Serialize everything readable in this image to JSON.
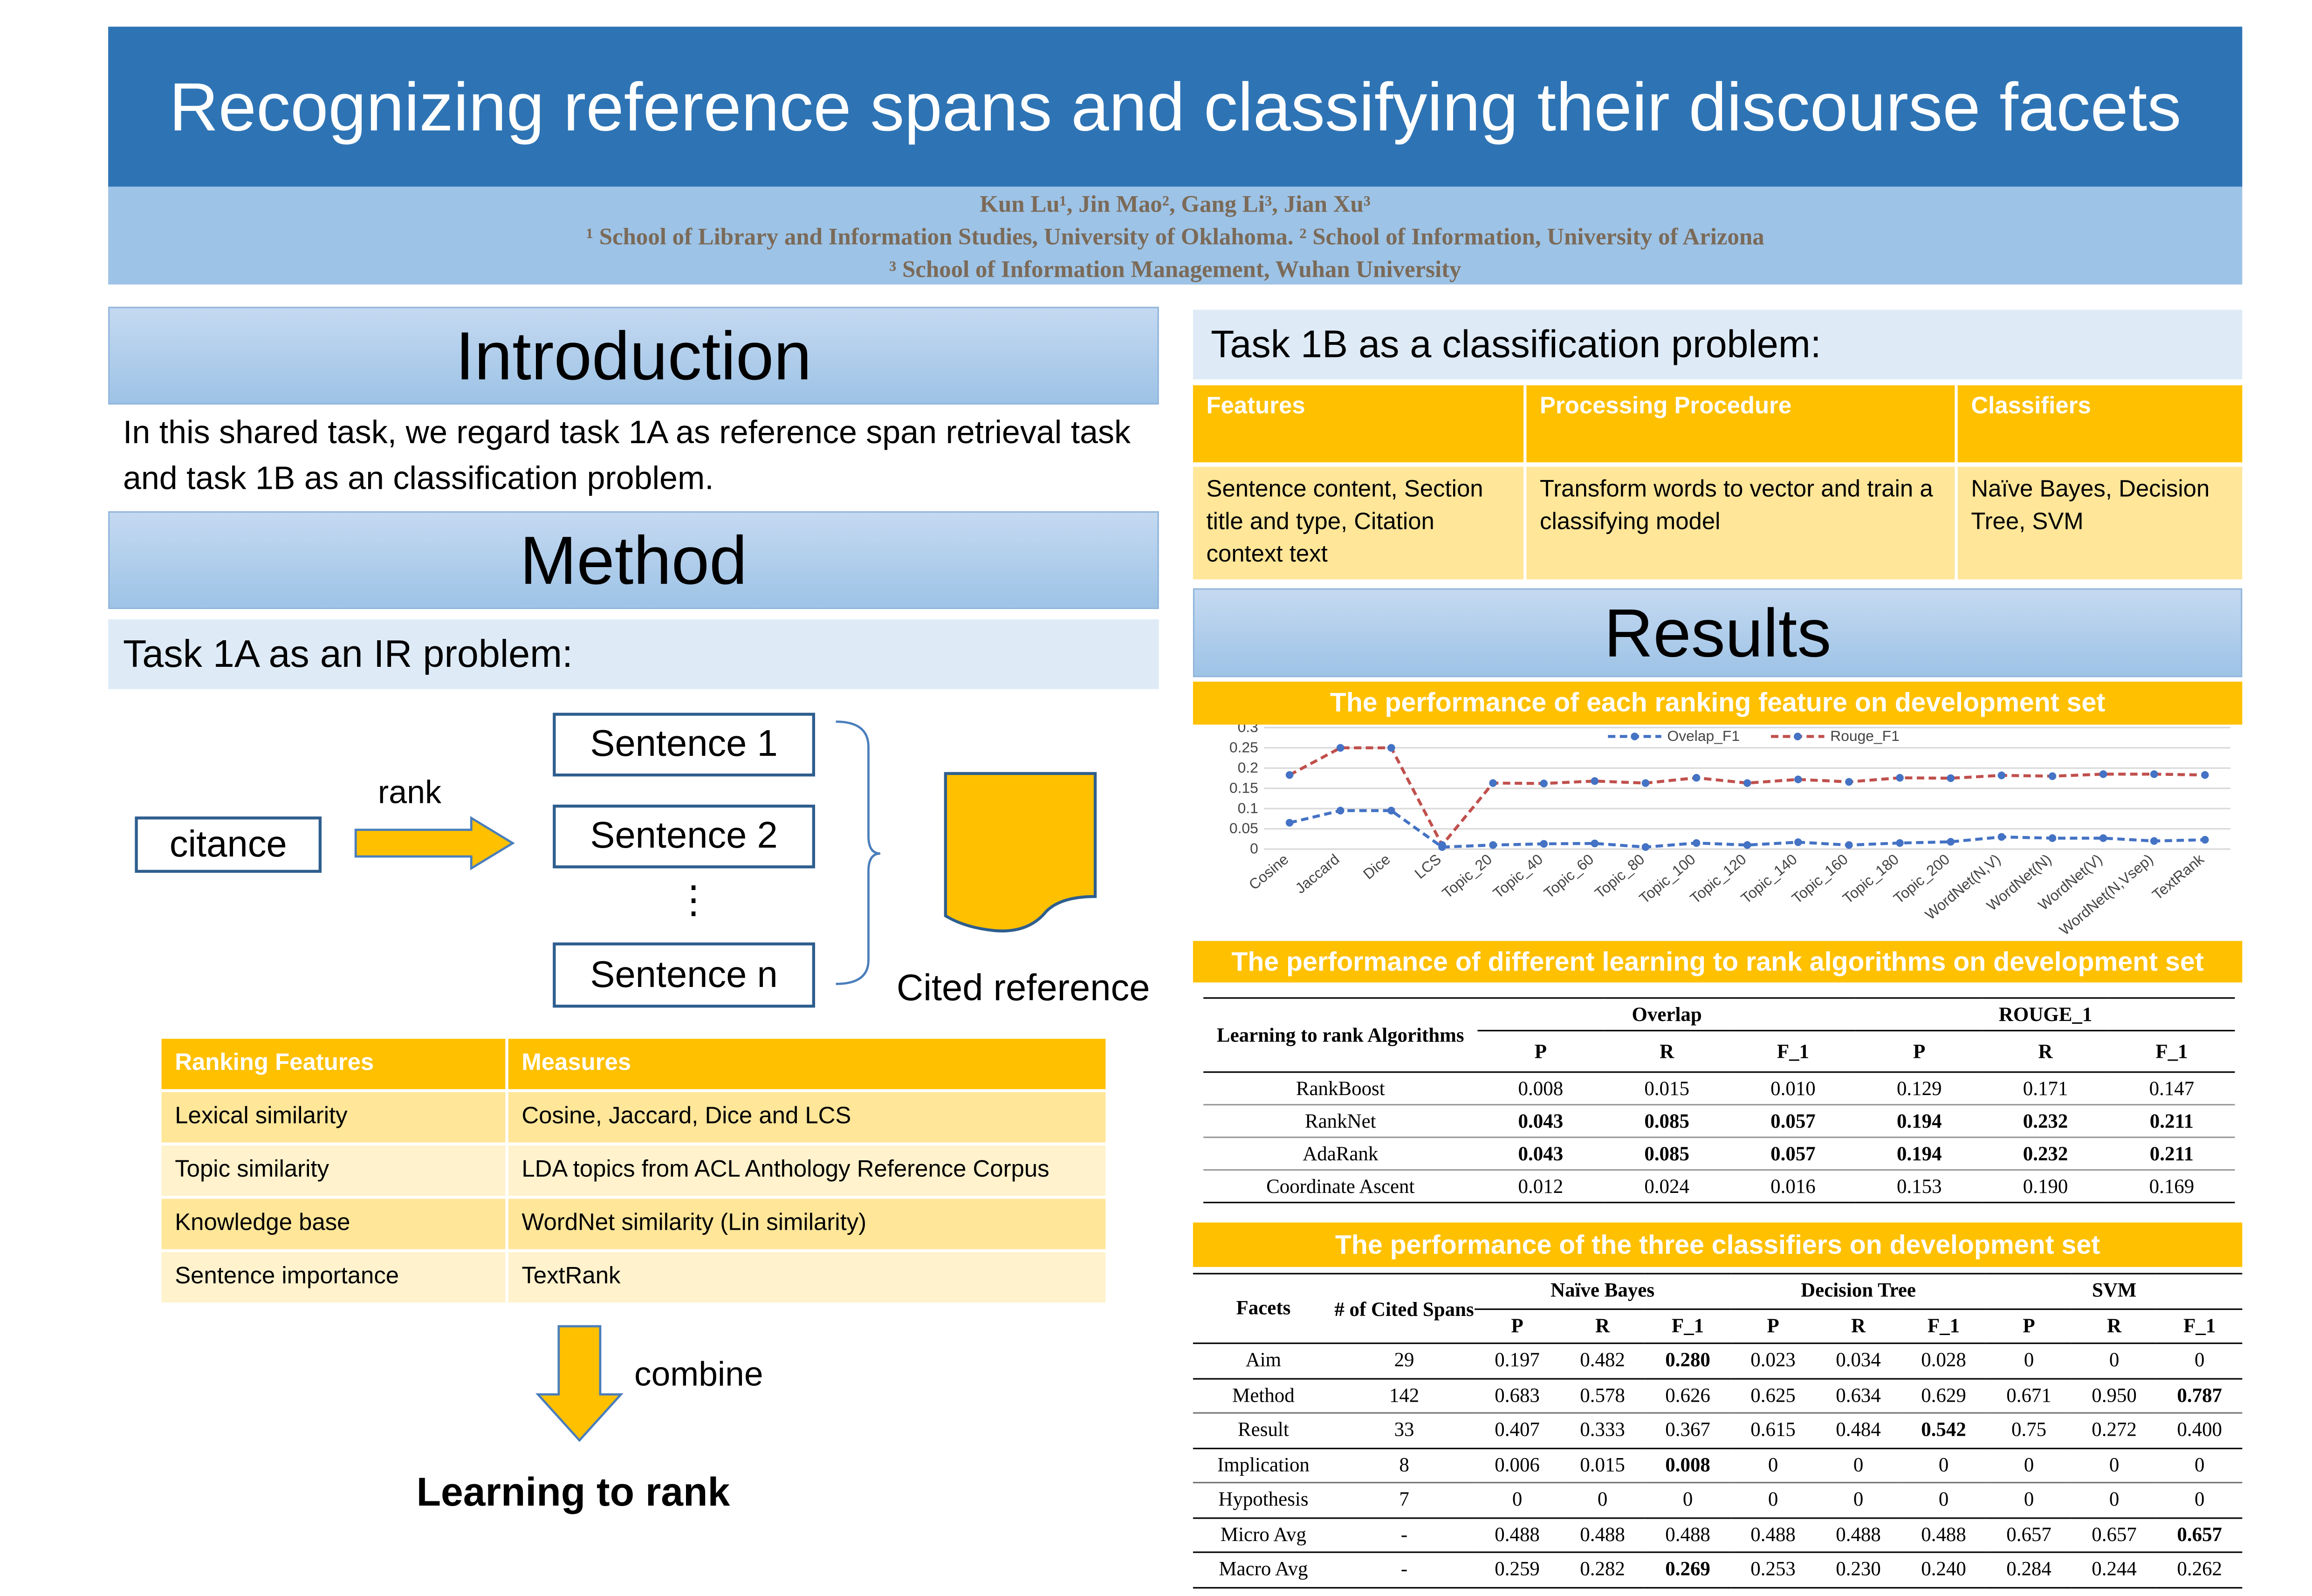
{
  "title": "Recognizing reference spans and classifying their discourse facets",
  "authors": {
    "line1": "Kun Lu¹, Jin Mao², Gang Li³, Jian Xu³",
    "line2": "¹ School of Library and Information Studies, University of Oklahoma. ² School of Information, University of Arizona",
    "line3": "³ School of Information Management, Wuhan University"
  },
  "intro": {
    "heading": "Introduction",
    "text": "In this shared task, we regard task 1A as reference span retrieval task and task 1B as an classification problem."
  },
  "method": {
    "heading": "Method",
    "task1a": "Task 1A as an IR problem:",
    "diagram": {
      "citance": "citance",
      "rank": "rank",
      "s1": "Sentence 1",
      "s2": "Sentence 2",
      "dots": "⋮",
      "sn": "Sentence n",
      "cited": "Cited reference",
      "combine": "combine",
      "ltr": "Learning to rank"
    },
    "ranking_table": {
      "headers": [
        "Ranking Features",
        "Measures"
      ],
      "rows": [
        [
          "Lexical similarity",
          "Cosine, Jaccard, Dice and LCS"
        ],
        [
          "Topic similarity",
          "LDA topics from ACL Anthology Reference Corpus"
        ],
        [
          "Knowledge base",
          "WordNet similarity (Lin similarity)"
        ],
        [
          "Sentence importance",
          "TextRank"
        ]
      ]
    }
  },
  "task1b": {
    "heading": "Task 1B as a classification problem:",
    "headers": [
      "Features",
      "Processing Procedure",
      "Classifiers"
    ],
    "row": [
      "Sentence content, Section title and type, Citation context text",
      "Transform words to vector and train a classifying model",
      "Naïve Bayes, Decision Tree, SVM"
    ]
  },
  "results": {
    "heading": "Results",
    "chart_title": "The performance of each ranking feature on development set",
    "table2_title": "The performance of different learning to rank algorithms on development set",
    "table3_title": "The performance of the three classifiers on development set"
  },
  "chart_data": {
    "type": "line",
    "title": "",
    "xlabel": "",
    "ylabel": "",
    "ylim": [
      0,
      0.3
    ],
    "yticks": [
      "0",
      "0.05",
      "0.1",
      "0.15",
      "0.2",
      "0.25",
      "0.3"
    ],
    "grid": true,
    "legend": "top",
    "categories": [
      "Cosine",
      "Jaccard",
      "Dice",
      "LCS",
      "Topic_20",
      "Topic_40",
      "Topic_60",
      "Topic_80",
      "Topic_100",
      "Topic_120",
      "Topic_140",
      "Topic_160",
      "Topic_180",
      "Topic_200",
      "WordNet(N,V)",
      "WordNet(N)",
      "WordNet(V)",
      "WordNet(N,Vsep)",
      "TextRank"
    ],
    "series": [
      {
        "name": "Ovelap_F1",
        "color": "#4472c4",
        "values": [
          0.065,
          0.095,
          0.095,
          0.005,
          0.01,
          0.013,
          0.014,
          0.005,
          0.015,
          0.01,
          0.017,
          0.01,
          0.015,
          0.018,
          0.03,
          0.027,
          0.027,
          0.02,
          0.023
        ]
      },
      {
        "name": "Rouge_F1",
        "color": "#c0504d",
        "values": [
          0.183,
          0.25,
          0.25,
          0.01,
          0.163,
          0.162,
          0.168,
          0.163,
          0.176,
          0.163,
          0.172,
          0.166,
          0.176,
          0.175,
          0.182,
          0.18,
          0.185,
          0.185,
          0.183
        ]
      }
    ]
  },
  "table2": {
    "head1": "Learning to rank Algorithms",
    "groups": [
      "Overlap",
      "ROUGE_1"
    ],
    "cols": [
      "P",
      "R",
      "F_1",
      "P",
      "R",
      "F_1"
    ],
    "rows": [
      {
        "name": "RankBoost",
        "v": [
          "0.008",
          "0.015",
          "0.010",
          "0.129",
          "0.171",
          "0.147"
        ],
        "bold": false
      },
      {
        "name": "RankNet",
        "v": [
          "0.043",
          "0.085",
          "0.057",
          "0.194",
          "0.232",
          "0.211"
        ],
        "bold": true
      },
      {
        "name": "AdaRank",
        "v": [
          "0.043",
          "0.085",
          "0.057",
          "0.194",
          "0.232",
          "0.211"
        ],
        "bold": true
      },
      {
        "name": "Coordinate Ascent",
        "v": [
          "0.012",
          "0.024",
          "0.016",
          "0.153",
          "0.190",
          "0.169"
        ],
        "bold": false
      }
    ]
  },
  "table3": {
    "head_facets": "Facets",
    "head_spans": "# of Cited Spans",
    "groups": [
      "Naïve Bayes",
      "Decision Tree",
      "SVM"
    ],
    "cols": [
      "P",
      "R",
      "F_1",
      "P",
      "R",
      "F_1",
      "P",
      "R",
      "F_1"
    ],
    "rows": [
      {
        "name": "Aim",
        "n": "29",
        "v": [
          "0.197",
          "0.482",
          "0.280",
          "0.023",
          "0.034",
          "0.028",
          "0",
          "0",
          "0"
        ],
        "bold": [
          2
        ]
      },
      {
        "name": "Method",
        "n": "142",
        "v": [
          "0.683",
          "0.578",
          "0.626",
          "0.625",
          "0.634",
          "0.629",
          "0.671",
          "0.950",
          "0.787"
        ],
        "bold": [
          8
        ]
      },
      {
        "name": "Result",
        "n": "33",
        "v": [
          "0.407",
          "0.333",
          "0.367",
          "0.615",
          "0.484",
          "0.542",
          "0.75",
          "0.272",
          "0.400"
        ],
        "bold": [
          5
        ]
      },
      {
        "name": "Implication",
        "n": "8",
        "v": [
          "0.006",
          "0.015",
          "0.008",
          "0",
          "0",
          "0",
          "0",
          "0",
          "0"
        ],
        "bold": [
          2
        ]
      },
      {
        "name": "Hypothesis",
        "n": "7",
        "v": [
          "0",
          "0",
          "0",
          "0",
          "0",
          "0",
          "0",
          "0",
          "0"
        ],
        "bold": []
      },
      {
        "name": "Micro Avg",
        "n": "-",
        "v": [
          "0.488",
          "0.488",
          "0.488",
          "0.488",
          "0.488",
          "0.488",
          "0.657",
          "0.657",
          "0.657"
        ],
        "bold": [
          8
        ]
      },
      {
        "name": "Macro Avg",
        "n": "-",
        "v": [
          "0.259",
          "0.282",
          "0.269",
          "0.253",
          "0.230",
          "0.240",
          "0.284",
          "0.244",
          "0.262"
        ],
        "bold": [
          2
        ]
      }
    ]
  }
}
